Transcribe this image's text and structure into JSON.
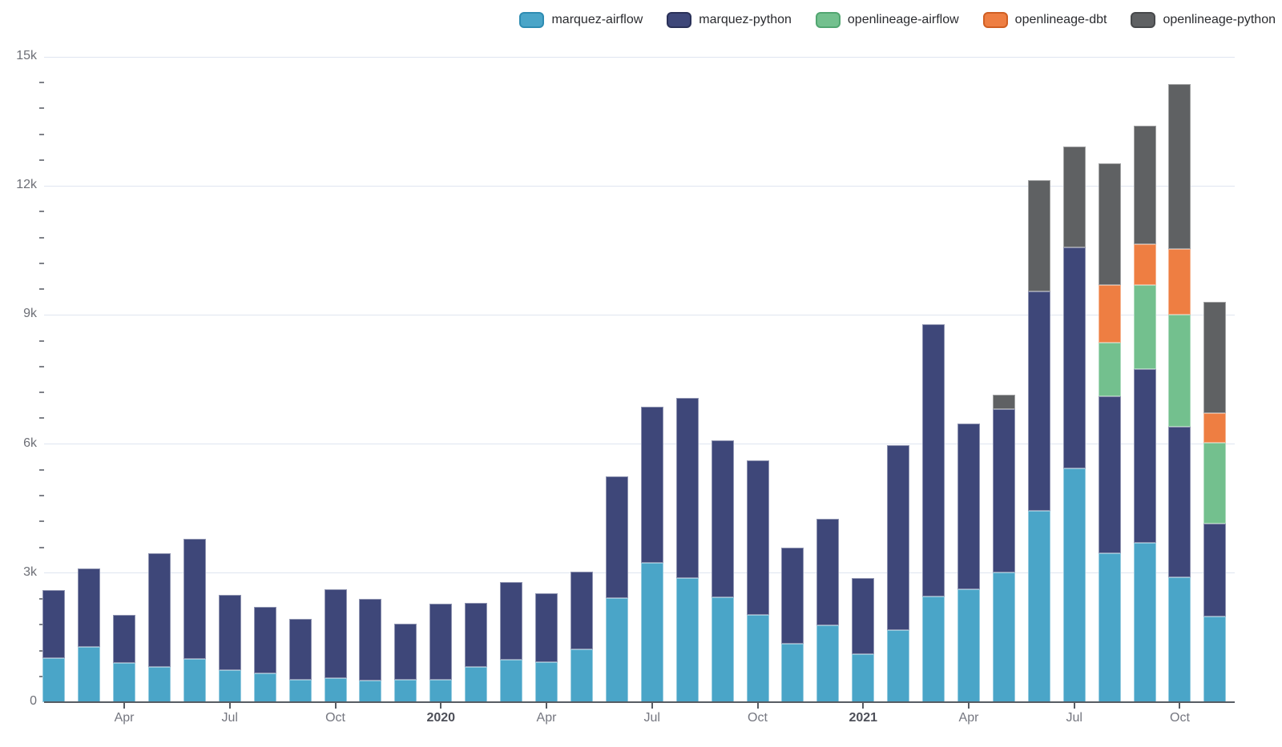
{
  "legend": {
    "items": [
      {
        "label": "marquez-airflow",
        "color": "#4AA5C8",
        "border": "#2E8CB2"
      },
      {
        "label": "marquez-python",
        "color": "#3E4779",
        "border": "#2A3158"
      },
      {
        "label": "openlineage-airflow",
        "color": "#73C08E",
        "border": "#52A671"
      },
      {
        "label": "openlineage-dbt",
        "color": "#EE7E42",
        "border": "#D05F23"
      },
      {
        "label": "openlineage-python",
        "color": "#5F6163",
        "border": "#47494B"
      }
    ]
  },
  "axis_colors": {
    "gridline": "#DFE5F0",
    "axis_line": "#575C63",
    "y_label": "#6D6F76",
    "y_minor_tick": "#7E8188",
    "month_label": "#74767F",
    "year_label": "#4D4F58",
    "legend_text": "#2A2B2F"
  },
  "chart_data": {
    "type": "bar",
    "stacked": true,
    "title": "",
    "xlabel": "",
    "ylabel": "",
    "ylim": [
      0,
      15000
    ],
    "grid": true,
    "legend_position": "top-right",
    "categories": [
      "Feb 2019",
      "Mar 2019",
      "Apr 2019",
      "May 2019",
      "Jun 2019",
      "Jul 2019",
      "Aug 2019",
      "Sep 2019",
      "Oct 2019",
      "Nov 2019",
      "Dec 2019",
      "Jan 2020",
      "Feb 2020",
      "Mar 2020",
      "Apr 2020",
      "May 2020",
      "Jun 2020",
      "Jul 2020",
      "Aug 2020",
      "Sep 2020",
      "Oct 2020",
      "Nov 2020",
      "Dec 2020",
      "Jan 2021",
      "Feb 2021",
      "Mar 2021",
      "Apr 2021",
      "May 2021",
      "Jun 2021",
      "Jul 2021",
      "Aug 2021",
      "Sep 2021",
      "Oct 2021",
      "Nov 2021"
    ],
    "series": [
      {
        "name": "marquez-airflow",
        "color": "#4AA5C8",
        "values": [
          1030,
          1290,
          905,
          825,
          1000,
          750,
          675,
          515,
          565,
          500,
          515,
          520,
          825,
          985,
          925,
          1235,
          2415,
          3235,
          2890,
          2440,
          2025,
          1355,
          1790,
          1110,
          1680,
          2455,
          2625,
          3015,
          4440,
          5435,
          3465,
          3710,
          2910,
          1990
        ]
      },
      {
        "name": "marquez-python",
        "color": "#3E4779",
        "values": [
          1575,
          1820,
          1130,
          2640,
          2800,
          1750,
          1535,
          1425,
          2060,
          1905,
          1310,
          1770,
          1490,
          1810,
          1610,
          1795,
          2835,
          3640,
          4190,
          3645,
          3600,
          2235,
          2475,
          1775,
          4295,
          6330,
          3845,
          3800,
          5100,
          5135,
          3640,
          4040,
          3490,
          2160
        ]
      },
      {
        "name": "openlineage-airflow",
        "color": "#73C08E",
        "values": [
          0,
          0,
          0,
          0,
          0,
          0,
          0,
          0,
          0,
          0,
          0,
          0,
          0,
          0,
          0,
          0,
          0,
          0,
          0,
          0,
          0,
          0,
          0,
          0,
          0,
          0,
          0,
          0,
          0,
          0,
          1245,
          1950,
          2615,
          1875
        ]
      },
      {
        "name": "openlineage-dbt",
        "color": "#EE7E42",
        "values": [
          0,
          0,
          0,
          0,
          0,
          0,
          0,
          0,
          0,
          0,
          0,
          0,
          0,
          0,
          0,
          0,
          0,
          0,
          0,
          0,
          0,
          0,
          0,
          0,
          0,
          0,
          0,
          0,
          0,
          0,
          1340,
          945,
          1520,
          695
        ]
      },
      {
        "name": "openlineage-python",
        "color": "#5F6163",
        "values": [
          0,
          0,
          0,
          0,
          0,
          0,
          0,
          0,
          0,
          0,
          0,
          0,
          0,
          0,
          0,
          0,
          0,
          0,
          0,
          0,
          0,
          0,
          0,
          0,
          0,
          0,
          0,
          340,
          2600,
          2340,
          2840,
          2760,
          3835,
          2580
        ]
      }
    ],
    "y_axis": {
      "major_ticks": [
        {
          "value": 0,
          "label": "0"
        },
        {
          "value": 3000,
          "label": "3k"
        },
        {
          "value": 6000,
          "label": "6k"
        },
        {
          "value": 9000,
          "label": "9k"
        },
        {
          "value": 12000,
          "label": "12k"
        },
        {
          "value": 15000,
          "label": "15k"
        }
      ],
      "minor_step": 600
    },
    "x_ticks": [
      {
        "index": 2,
        "label": "Apr",
        "emphasis": false
      },
      {
        "index": 5,
        "label": "Jul",
        "emphasis": false
      },
      {
        "index": 8,
        "label": "Oct",
        "emphasis": false
      },
      {
        "index": 11,
        "label": "2020",
        "emphasis": true
      },
      {
        "index": 14,
        "label": "Apr",
        "emphasis": false
      },
      {
        "index": 17,
        "label": "Jul",
        "emphasis": false
      },
      {
        "index": 20,
        "label": "Oct",
        "emphasis": false
      },
      {
        "index": 23,
        "label": "2021",
        "emphasis": true
      },
      {
        "index": 26,
        "label": "Apr",
        "emphasis": false
      },
      {
        "index": 29,
        "label": "Jul",
        "emphasis": false
      },
      {
        "index": 32,
        "label": "Oct",
        "emphasis": false
      }
    ]
  }
}
